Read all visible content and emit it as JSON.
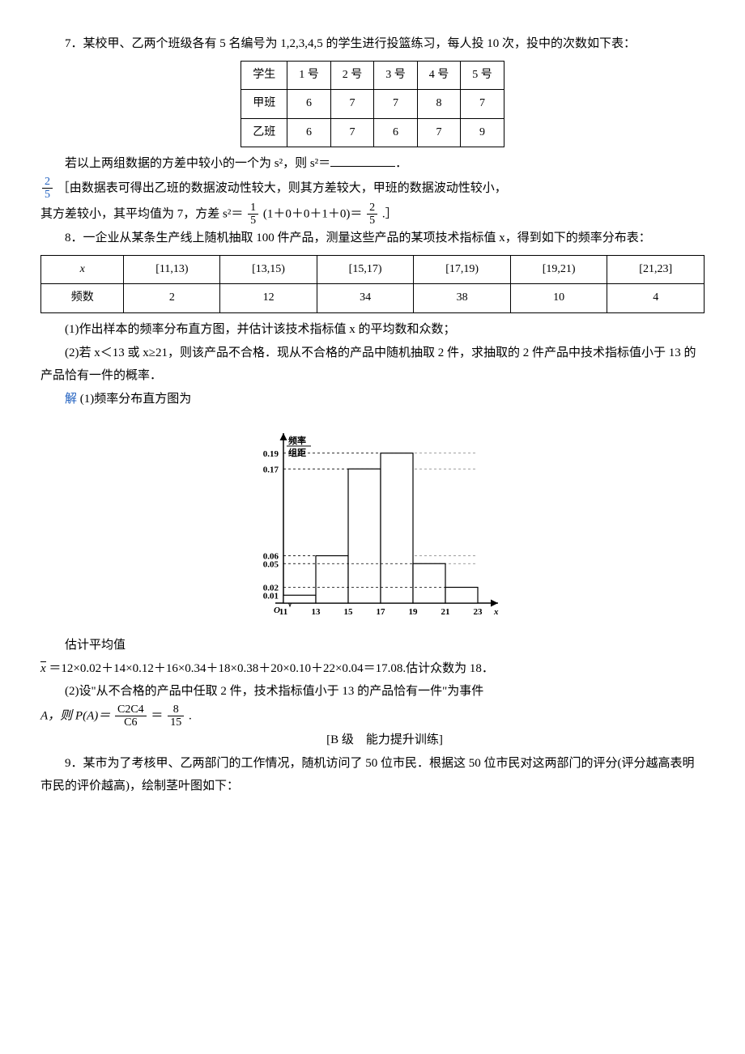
{
  "q7": {
    "text": "7．某校甲、乙两个班级各有 5 名编号为 1,2,3,4,5 的学生进行投篮练习，每人投 10 次，投中的次数如下表：",
    "table": {
      "headers": [
        "学生",
        "1 号",
        "2 号",
        "3 号",
        "4 号",
        "5 号"
      ],
      "rows": [
        [
          "甲班",
          "6",
          "7",
          "7",
          "8",
          "7"
        ],
        [
          "乙班",
          "6",
          "7",
          "6",
          "7",
          "9"
        ]
      ]
    },
    "after": "若以上两组数据的方差中较小的一个为 s²，则 s²＝",
    "ans_frac": {
      "num": "2",
      "den": "5"
    },
    "expl1": "［由数据表可得出乙班的数据波动性较大，则其方差较大，甲班的数据波动性较小，",
    "expl2_a": "其方差较小，其平均值为 7，方差 s²＝",
    "expl2_frac1": {
      "num": "1",
      "den": "5"
    },
    "expl2_b": "(1＋0＋0＋1＋0)＝",
    "expl2_frac2": {
      "num": "2",
      "den": "5"
    },
    "expl2_c": ".］"
  },
  "q8": {
    "text": "8．一企业从某条生产线上随机抽取 100 件产品，测量这些产品的某项技术指标值 x，得到如下的频率分布表：",
    "table": {
      "headers": [
        "x",
        "[11,13)",
        "[13,15)",
        "[15,17)",
        "[17,19)",
        "[19,21)",
        "[21,23]"
      ],
      "row_label": "频数",
      "row": [
        "2",
        "12",
        "34",
        "38",
        "10",
        "4"
      ]
    },
    "sub1": "(1)作出样本的频率分布直方图，并估计该技术指标值 x 的平均数和众数；",
    "sub2": "(2)若 x＜13 或 x≥21，则该产品不合格．现从不合格的产品中随机抽取 2 件，求抽取的 2 件产品中技术指标值小于 13 的产品恰有一件的概率．",
    "sol_label": "解",
    "sol1": "(1)频率分布直方图为",
    "histogram": {
      "bins": [
        11,
        13,
        15,
        17,
        19,
        21,
        23
      ],
      "heights": [
        0.01,
        0.06,
        0.17,
        0.19,
        0.05,
        0.02
      ],
      "yticks": [
        0.01,
        0.02,
        0.05,
        0.06,
        0.17,
        0.19
      ],
      "ylabel_top": "频率",
      "ylabel_bot": "组距",
      "xlabel": "x",
      "bar_fill": "#ffffff",
      "bar_stroke": "#000000",
      "axis_color": "#000000",
      "font_size": 11
    },
    "mean_intro": "估计平均值",
    "mean_line": "＝12×0.02＋14×0.12＋16×0.34＋18×0.38＋20×0.10＋22×0.04＝17.08.估计众数为 18．",
    "sol2a": "(2)设\"从不合格的产品中任取 2 件，技术指标值小于 13 的产品恰有一件\"为事件",
    "sol2b_a": "A，则 P(A)＝",
    "sol2b_frac1": {
      "num": "C2C4",
      "den": "C6"
    },
    "sol2b_eq": "＝",
    "sol2b_frac2": {
      "num": "8",
      "den": "15"
    },
    "sol2b_c": "."
  },
  "levelB": "[B 级　能力提升训练]",
  "q9": {
    "text": "9．某市为了考核甲、乙两部门的工作情况，随机访问了 50 位市民．根据这 50 位市民对这两部门的评分(评分越高表明市民的评价越高)，绘制茎叶图如下："
  }
}
